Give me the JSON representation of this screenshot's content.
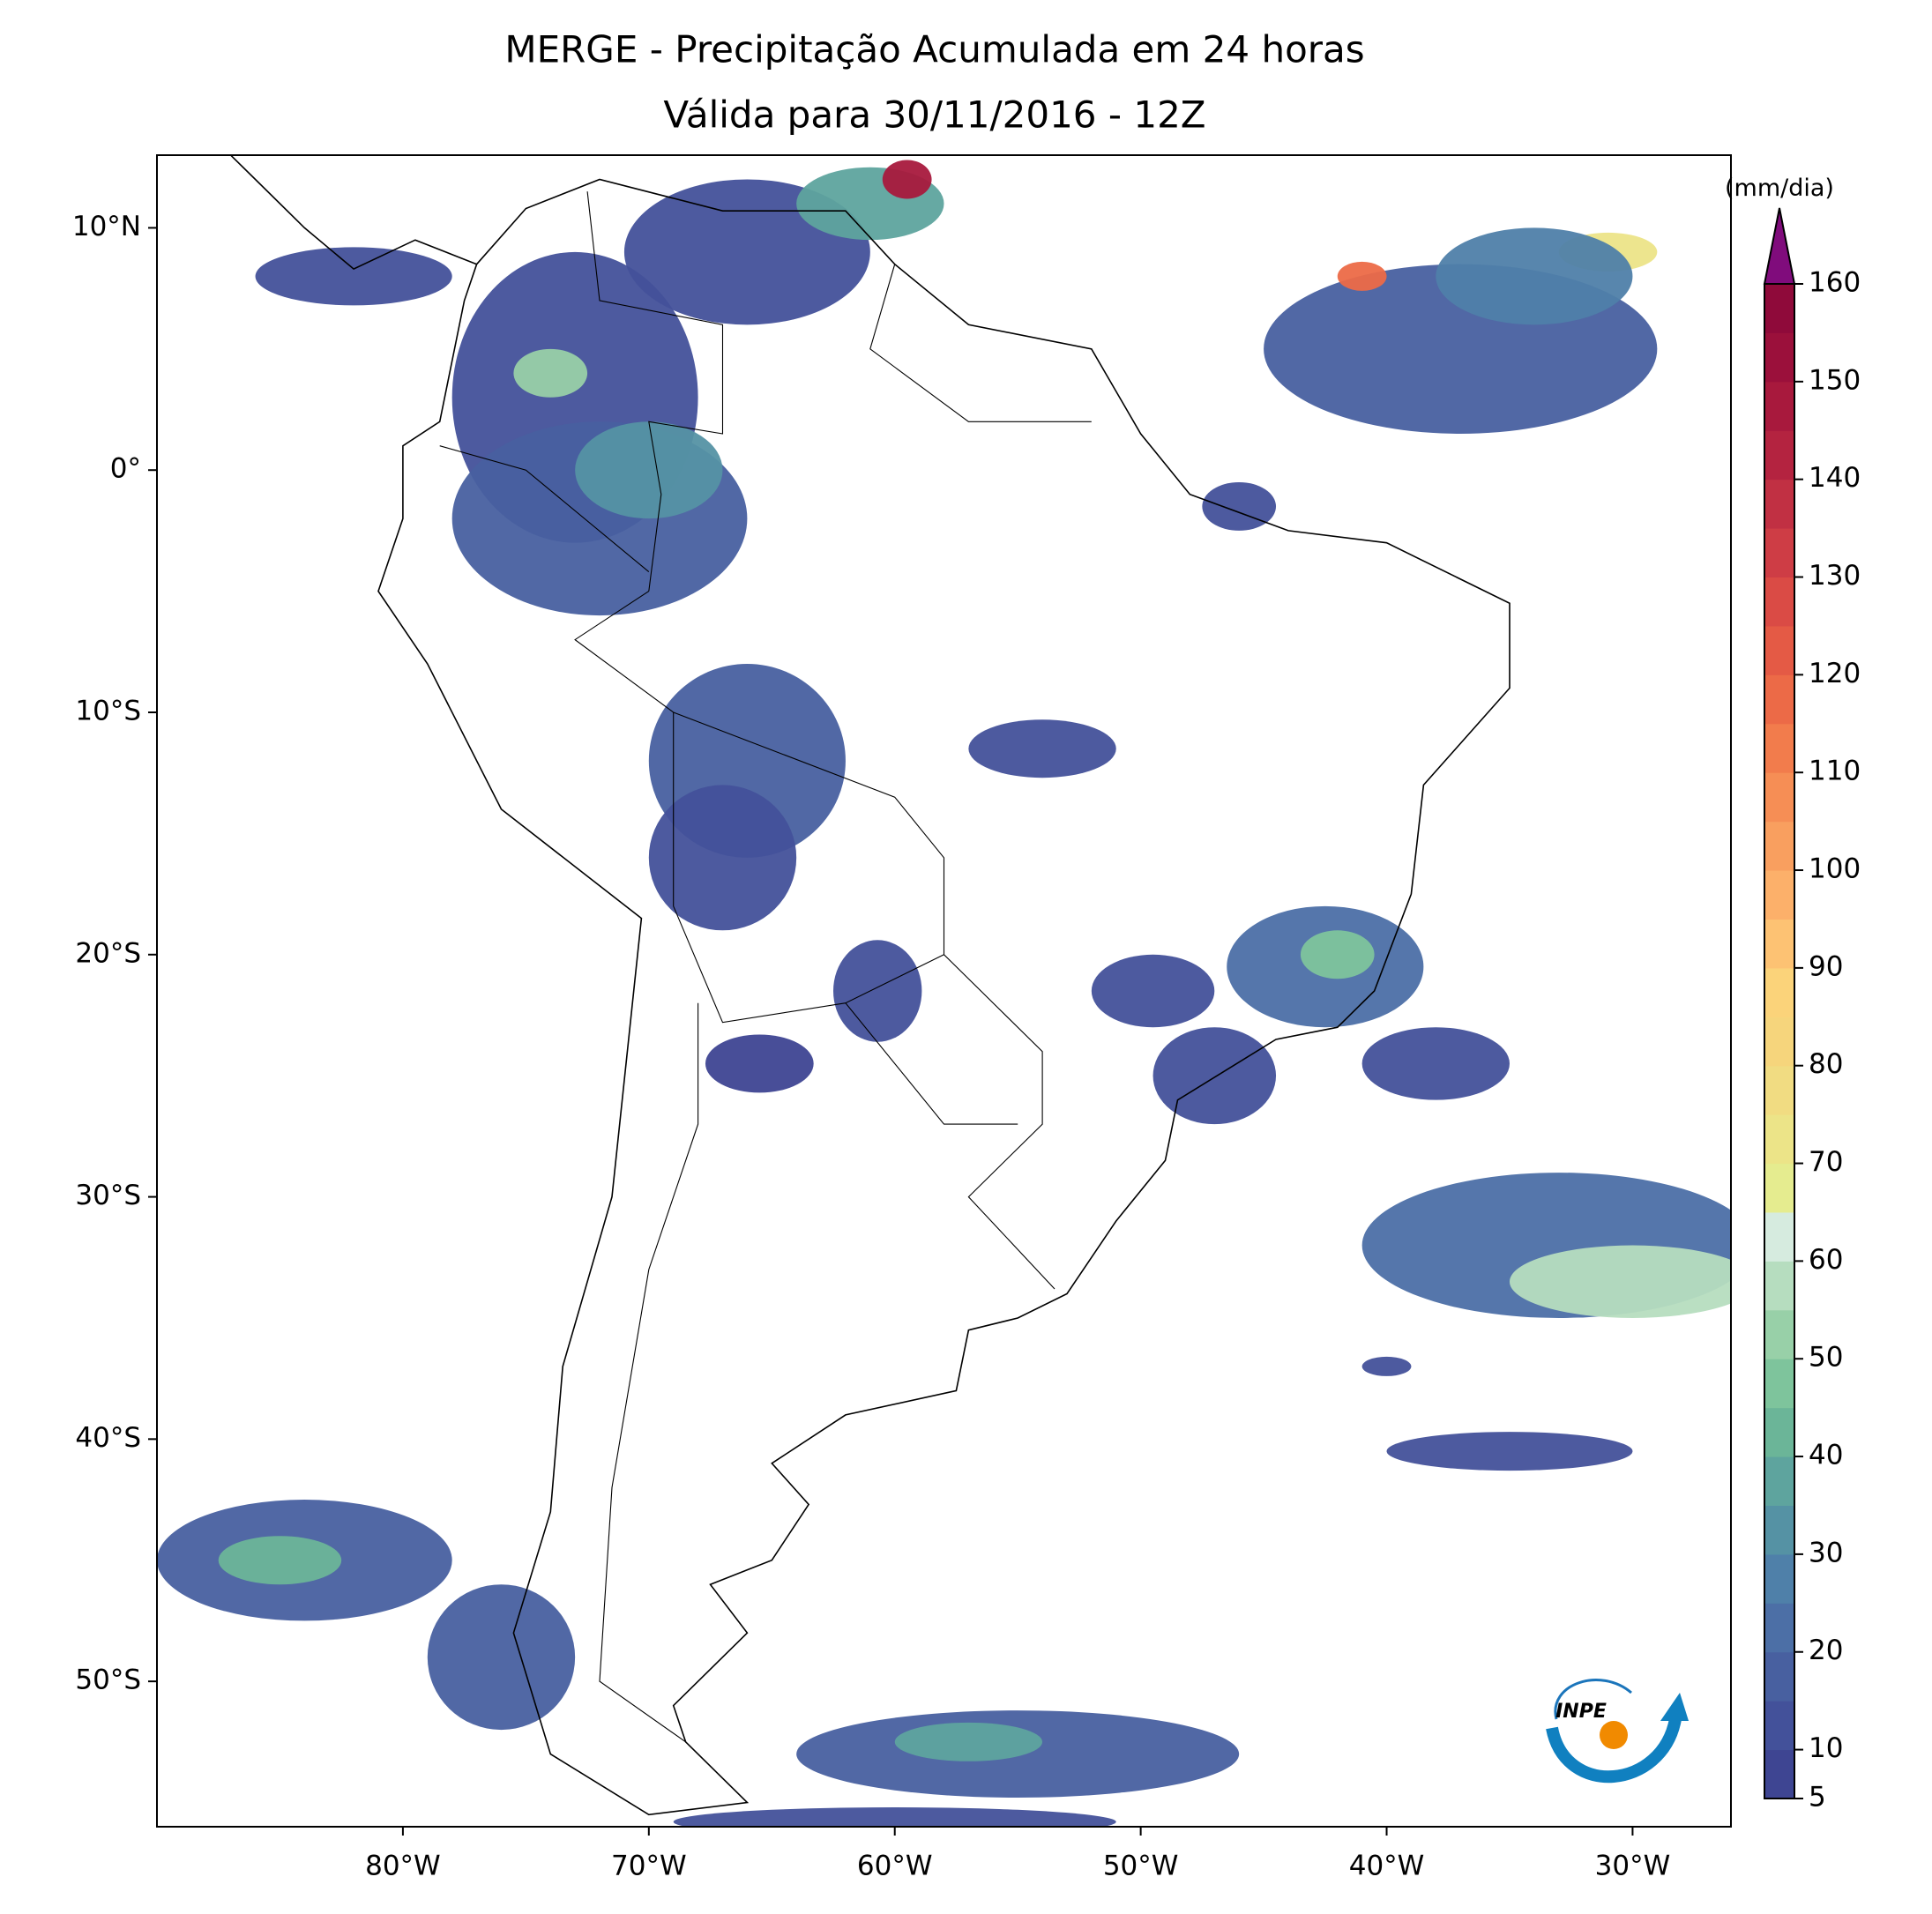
{
  "map": {
    "title": "MERGE - Precipitação Acumulada em 24 horas",
    "subtitle": "Válida para 30/11/2016 - 12Z",
    "xlim": [
      -90,
      -26
    ],
    "ylim": [
      -56,
      13
    ],
    "xticks": [
      {
        "value": -80,
        "label": "80°W"
      },
      {
        "value": -70,
        "label": "70°W"
      },
      {
        "value": -60,
        "label": "60°W"
      },
      {
        "value": -50,
        "label": "50°W"
      },
      {
        "value": -40,
        "label": "40°W"
      },
      {
        "value": -30,
        "label": "30°W"
      }
    ],
    "yticks": [
      {
        "value": 10,
        "label": "10°N"
      },
      {
        "value": 0,
        "label": "0°"
      },
      {
        "value": -10,
        "label": "10°S"
      },
      {
        "value": -20,
        "label": "20°S"
      },
      {
        "value": -30,
        "label": "30°S"
      },
      {
        "value": -40,
        "label": "40°S"
      },
      {
        "value": -50,
        "label": "50°S"
      }
    ],
    "colorbar": {
      "label": "(mm/dia)",
      "lim": [
        5,
        160
      ],
      "ticks": [
        5,
        10,
        20,
        30,
        40,
        50,
        60,
        70,
        80,
        90,
        100,
        110,
        120,
        130,
        140,
        150,
        160
      ],
      "levels": [
        5,
        10,
        15,
        20,
        25,
        30,
        35,
        40,
        45,
        50,
        55,
        60,
        65,
        70,
        75,
        80,
        85,
        90,
        95,
        100,
        105,
        110,
        115,
        120,
        125,
        130,
        135,
        140,
        145,
        150,
        155,
        160
      ],
      "colors": [
        "#3e4592",
        "#43519a",
        "#4860a0",
        "#4c6fa6",
        "#4f80a9",
        "#5592a4",
        "#5ea49e",
        "#6bb598",
        "#7ec49c",
        "#98d0a8",
        "#b6ddbf",
        "#d6ebdf",
        "#e5ec8f",
        "#ece488",
        "#f1dc82",
        "#f6d57c",
        "#fbd37a",
        "#fdc273",
        "#fcb06a",
        "#f99f5f",
        "#f68e55",
        "#f27c4c",
        "#ec6a47",
        "#e45a45",
        "#da4b45",
        "#ce3d45",
        "#c13043",
        "#b42340",
        "#a8193d",
        "#9b103b",
        "#8f0a3a"
      ],
      "extend_color": "#800c7c"
    },
    "logo": "INPE"
  }
}
